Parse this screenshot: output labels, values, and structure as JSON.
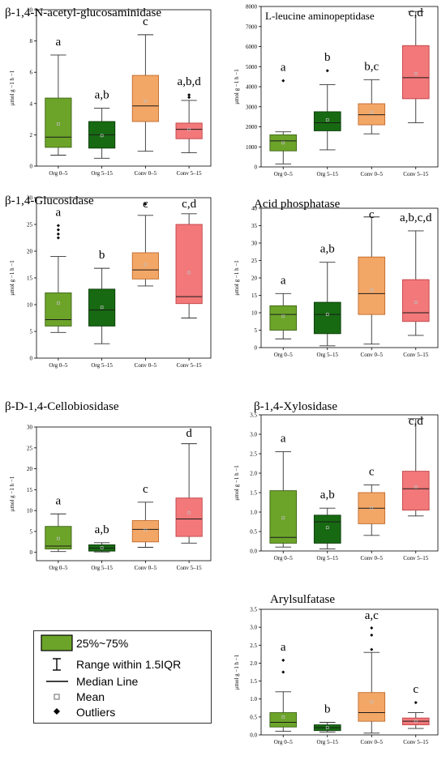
{
  "colors": {
    "Org 0–5": {
      "fill": "#6ca42a",
      "stroke": "#3d6414"
    },
    "Org 5–15": {
      "fill": "#176a12",
      "stroke": "#0b3a08"
    },
    "Conv 0–5": {
      "fill": "#f3a767",
      "stroke": "#c06a2a"
    },
    "Conv 5–15": {
      "fill": "#f2787a",
      "stroke": "#c04446"
    },
    "mean": "#c0c0c0"
  },
  "legend": {
    "items": [
      {
        "label": "25%~75%",
        "icon": "green-box-swatch"
      },
      {
        "label": "Range within 1.5IQR",
        "icon": "whisker-icon"
      },
      {
        "label": "Median Line",
        "icon": "line-icon"
      },
      {
        "label": "Mean",
        "icon": "square-icon"
      },
      {
        "label": "Outliers",
        "icon": "diamond-icon"
      }
    ]
  },
  "chart_data": [
    {
      "type": "box",
      "title": "β-1,4-N-acetyl-glucosaminidase",
      "ylabel": "μmol g −1 h −1",
      "ylim": [
        0,
        10
      ],
      "yticks": [
        0,
        2,
        4,
        6,
        8,
        10
      ],
      "categories": [
        "Org 0–5",
        "Org 5–15",
        "Conv 0–5",
        "Conv 5–15"
      ],
      "boxes": [
        {
          "min": 0.7,
          "q1": 1.2,
          "median": 1.85,
          "q3": 4.35,
          "max": 7.1,
          "mean": 2.7,
          "outliers": []
        },
        {
          "min": 0.5,
          "q1": 1.15,
          "median": 2.0,
          "q3": 2.85,
          "max": 3.7,
          "mean": 1.95,
          "outliers": []
        },
        {
          "min": 0.95,
          "q1": 2.85,
          "median": 3.85,
          "q3": 5.8,
          "max": 8.4,
          "mean": 4.15,
          "outliers": []
        },
        {
          "min": 0.85,
          "q1": 1.75,
          "median": 2.35,
          "q3": 2.75,
          "max": 4.2,
          "mean": 2.35,
          "outliers": [
            4.4,
            4.55
          ]
        }
      ],
      "letters": [
        "a",
        "a,b",
        "c",
        "a,b,d"
      ]
    },
    {
      "type": "box",
      "title": "L-leucine aminopeptidase",
      "ylabel": "μmol g −1 h −1",
      "ylim": [
        0,
        8000
      ],
      "yticks": [
        0,
        1000,
        2000,
        3000,
        4000,
        5000,
        6000,
        7000,
        8000
      ],
      "categories": [
        "Org 0–5",
        "Org 5–15",
        "Conv 0–5",
        "Conv 5–15"
      ],
      "boxes": [
        {
          "min": 150,
          "q1": 800,
          "median": 1300,
          "q3": 1600,
          "max": 1750,
          "mean": 1200,
          "outliers": [
            4300
          ]
        },
        {
          "min": 850,
          "q1": 1800,
          "median": 2200,
          "q3": 2750,
          "max": 4100,
          "mean": 2350,
          "outliers": [
            4800
          ]
        },
        {
          "min": 1650,
          "q1": 2100,
          "median": 2600,
          "q3": 3150,
          "max": 4350,
          "mean": 2700,
          "outliers": []
        },
        {
          "min": 2200,
          "q1": 3400,
          "median": 4450,
          "q3": 6050,
          "max": 7750,
          "mean": 4650,
          "outliers": []
        }
      ],
      "letters": [
        "a",
        "b",
        "b,c",
        "c,d"
      ]
    },
    {
      "type": "box",
      "title": "β-1,4-Glucosidase",
      "ylabel": "μmol g −1 h −1",
      "ylim": [
        0,
        30
      ],
      "yticks": [
        0,
        5,
        10,
        15,
        20,
        25,
        30
      ],
      "categories": [
        "Org 0–5",
        "Org 5–15",
        "Conv 0–5",
        "Conv 5–15"
      ],
      "boxes": [
        {
          "min": 4.8,
          "q1": 6.0,
          "median": 7.2,
          "q3": 12.2,
          "max": 19.0,
          "mean": 10.3,
          "outliers": [
            22.5,
            23.2,
            24.0,
            24.8
          ]
        },
        {
          "min": 2.7,
          "q1": 6.0,
          "median": 9.0,
          "q3": 12.9,
          "max": 16.8,
          "mean": 9.5,
          "outliers": []
        },
        {
          "min": 13.5,
          "q1": 14.8,
          "median": 16.5,
          "q3": 19.7,
          "max": 26.7,
          "mean": 17.5,
          "outliers": [
            28.8
          ]
        },
        {
          "min": 7.5,
          "q1": 10.2,
          "median": 11.5,
          "q3": 25.0,
          "max": 27.0,
          "mean": 16.0,
          "outliers": []
        }
      ],
      "letters": [
        "a",
        "b",
        "c",
        "c,d"
      ]
    },
    {
      "type": "box",
      "title": "Acid phosphatase",
      "ylabel": "μmol g −1 h −1",
      "ylim": [
        0,
        40
      ],
      "yticks": [
        0,
        5,
        10,
        15,
        20,
        25,
        30,
        35,
        40
      ],
      "categories": [
        "Org 0–5",
        "Org 5–15",
        "Conv 0–5",
        "Conv 5–15"
      ],
      "boxes": [
        {
          "min": 2.5,
          "q1": 5.0,
          "median": 9.5,
          "q3": 12.0,
          "max": 15.5,
          "mean": 9.0,
          "outliers": []
        },
        {
          "min": 0.5,
          "q1": 4.0,
          "median": 9.5,
          "q3": 13.0,
          "max": 24.5,
          "mean": 9.5,
          "outliers": []
        },
        {
          "min": 1.0,
          "q1": 9.5,
          "median": 15.5,
          "q3": 26.0,
          "max": 37.5,
          "mean": 16.5,
          "outliers": []
        },
        {
          "min": 3.5,
          "q1": 7.5,
          "median": 10.0,
          "q3": 19.5,
          "max": 33.5,
          "mean": 13.0,
          "outliers": []
        }
      ],
      "letters": [
        "a",
        "a,b",
        "c",
        "a,b,c,d"
      ]
    },
    {
      "type": "box",
      "title": "β-D-1,4-Cellobiosidase",
      "ylabel": "μmol g −1 h −1",
      "ylim": [
        -2,
        30
      ],
      "yticks": [
        0,
        5,
        10,
        15,
        20,
        25,
        30
      ],
      "categories": [
        "Org 0–5",
        "Org 5–15",
        "Conv 0–5",
        "Conv 5–15"
      ],
      "boxes": [
        {
          "min": 0.2,
          "q1": 0.8,
          "median": 1.5,
          "q3": 6.2,
          "max": 9.2,
          "mean": 3.3,
          "outliers": []
        },
        {
          "min": 0.1,
          "q1": 0.3,
          "median": 1.0,
          "q3": 1.8,
          "max": 2.3,
          "mean": 1.1,
          "outliers": []
        },
        {
          "min": 1.2,
          "q1": 2.5,
          "median": 5.5,
          "q3": 7.6,
          "max": 12.0,
          "mean": 5.4,
          "outliers": []
        },
        {
          "min": 2.2,
          "q1": 3.8,
          "median": 8.0,
          "q3": 13.0,
          "max": 26.0,
          "mean": 9.5,
          "outliers": []
        }
      ],
      "letters": [
        "a",
        "a,b",
        "c",
        "d"
      ]
    },
    {
      "type": "box",
      "title": "β-1,4-Xylosidase",
      "ylabel": "μmol g −1 h −1",
      "ylim": [
        0,
        3.5
      ],
      "yticks": [
        0.0,
        0.5,
        1.0,
        1.5,
        2.0,
        2.5,
        3.0,
        3.5
      ],
      "categories": [
        "Org 0–5",
        "Org 5–15",
        "Conv 0–5",
        "Conv 5–15"
      ],
      "boxes": [
        {
          "min": 0.1,
          "q1": 0.2,
          "median": 0.35,
          "q3": 1.55,
          "max": 2.55,
          "mean": 0.85,
          "outliers": []
        },
        {
          "min": 0.05,
          "q1": 0.2,
          "median": 0.75,
          "q3": 0.92,
          "max": 1.1,
          "mean": 0.6,
          "outliers": []
        },
        {
          "min": 0.4,
          "q1": 0.7,
          "median": 1.1,
          "q3": 1.5,
          "max": 1.7,
          "mean": 1.1,
          "outliers": []
        },
        {
          "min": 0.9,
          "q1": 1.05,
          "median": 1.6,
          "q3": 2.05,
          "max": 3.4,
          "mean": 1.65,
          "outliers": []
        }
      ],
      "letters": [
        "a",
        "a,b",
        "c",
        "c,d"
      ]
    },
    {
      "type": "box",
      "title": "Arylsulfatase",
      "ylabel": "μmol g −1 h −1",
      "ylim": [
        0,
        3.5
      ],
      "yticks": [
        0.0,
        0.5,
        1.0,
        1.5,
        2.0,
        2.5,
        3.0,
        3.5
      ],
      "categories": [
        "Org 0–5",
        "Org 5–15",
        "Conv 0–5",
        "Conv 5–15"
      ],
      "boxes": [
        {
          "min": 0.1,
          "q1": 0.22,
          "median": 0.35,
          "q3": 0.62,
          "max": 1.2,
          "mean": 0.5,
          "outliers": [
            1.75,
            2.08
          ]
        },
        {
          "min": 0.08,
          "q1": 0.12,
          "median": 0.2,
          "q3": 0.28,
          "max": 0.35,
          "mean": 0.2,
          "outliers": []
        },
        {
          "min": 0.05,
          "q1": 0.38,
          "median": 0.62,
          "q3": 1.18,
          "max": 2.3,
          "mean": 0.92,
          "outliers": [
            2.38,
            2.78,
            2.98
          ]
        },
        {
          "min": 0.18,
          "q1": 0.28,
          "median": 0.38,
          "q3": 0.47,
          "max": 0.62,
          "mean": 0.38,
          "outliers": [
            0.9
          ]
        }
      ],
      "letters": [
        "a",
        "b",
        "a,c",
        "c"
      ]
    }
  ]
}
